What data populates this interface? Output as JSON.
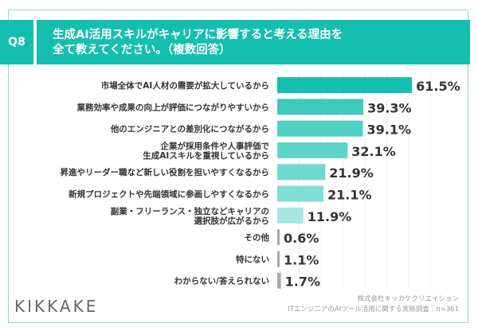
{
  "header": {
    "question_no": "Q8",
    "title_line1": "生成AI活用スキルがキャリアに影響すると考える理由を",
    "title_line2": "全て教えてください。（複数回答）"
  },
  "footer": {
    "company": "株式会社キッカケクリエイション",
    "survey": "ITエンジニアのAIツール活用に関する実態調査｜n=361",
    "logo": "KIKKAKE"
  },
  "chart_data": {
    "type": "bar",
    "orientation": "horizontal",
    "xlim": [
      0,
      70
    ],
    "grid": true,
    "categories": [
      [
        "市場全体でAI人材の需要が拡大しているから"
      ],
      [
        "業務効率や成果の向上が評価につながりやすいから"
      ],
      [
        "他のエンジニアとの差別化につながるから"
      ],
      [
        "企業が採用条件や人事評価で",
        "生成AIスキルを重視しているから"
      ],
      [
        "昇進やリーダー職など新しい役割を担いやすくなるから"
      ],
      [
        "新規プロジェクトや先端領域に参画しやすくなるから"
      ],
      [
        "副業・フリーランス・独立などキャリアの",
        "選択肢が広がるから"
      ],
      [
        "その他"
      ],
      [
        "特にない"
      ],
      [
        "わからない/答えられない"
      ]
    ],
    "values": [
      61.5,
      39.3,
      39.1,
      32.1,
      21.9,
      21.1,
      11.9,
      0.6,
      1.1,
      1.7
    ],
    "value_labels": [
      "61.5%",
      "39.3%",
      "39.1%",
      "32.1%",
      "21.9%",
      "21.1%",
      "11.9%",
      "0.6%",
      "1.1%",
      "1.7%"
    ],
    "colors": [
      "#14bfb0",
      "#3fcabd",
      "#4fd0c3",
      "#5fd4c8",
      "#6fd9ce",
      "#7fded4",
      "#a6e7e0",
      "#aaaaaa",
      "#aaaaaa",
      "#aaaaaa"
    ]
  }
}
